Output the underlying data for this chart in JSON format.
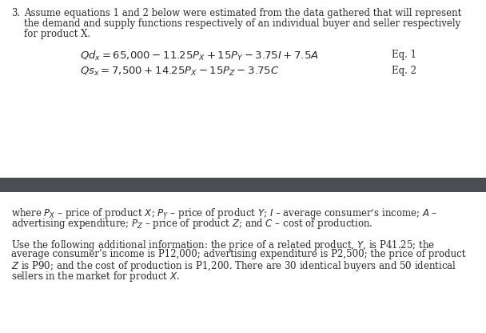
{
  "bg_color": "#ffffff",
  "divider_color": "#4a4e52",
  "text_color": "#2a2a2a",
  "font_size_body": 8.5,
  "font_size_eq": 9.5,
  "intro_lines": [
    "Assume equations 1 and 2 below were estimated from the data gathered that will represent",
    "the demand and supply functions respectively of an individual buyer and seller respectively",
    "for product X."
  ],
  "where_lines": [
    "where $P_X$ – price of product $X$; $P_Y$ – price of product $Y$; $I$ – average consumer’s income; $A$ –",
    "advertising expenditure; $P_Z$ – price of product $Z$; and $C$ – cost of production."
  ],
  "use_lines": [
    "Use the following additional information: the price of a related product, $Y$, is P41.25; the",
    "average consumer’s income is P12,000; advertising expenditure is P2,500; the price of product",
    "$Z$ is P90; and the cost of production is P1,200. There are 30 identical buyers and 50 identical",
    "sellers in the market for product $X$."
  ]
}
